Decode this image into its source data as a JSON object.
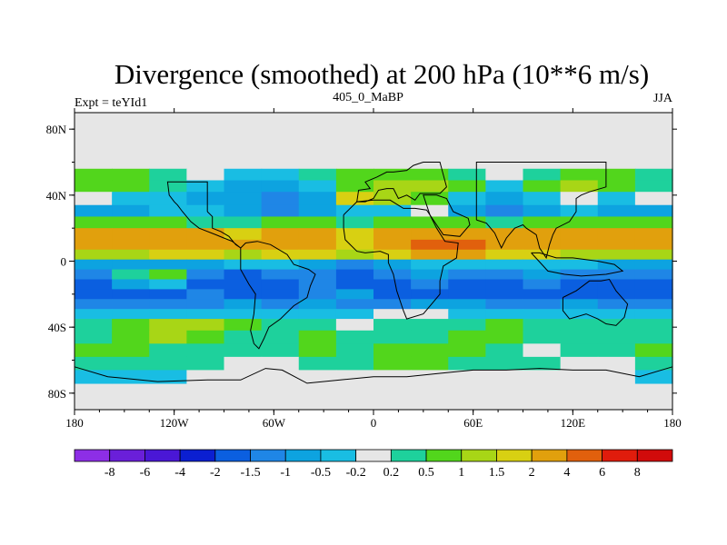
{
  "chart_data": {
    "type": "heatmap",
    "title": "Divergence (smoothed) at 200 hPa (10**6 m/s)",
    "subtitle": "405_0_MaBP",
    "left_label": "Expt = teYId1",
    "right_label": "JJA",
    "x_ticks": [
      "180",
      "120W",
      "60W",
      "0",
      "60E",
      "120E",
      "180"
    ],
    "y_ticks": [
      "80N",
      "40N",
      "0",
      "40S",
      "80S"
    ],
    "x_range_deg": [
      -180,
      180
    ],
    "y_range_deg": [
      -90,
      90
    ],
    "colorbar_labels": [
      "-8",
      "-6",
      "-4",
      "-2",
      "-1.5",
      "-1",
      "-0.5",
      "-0.2",
      "0.2",
      "0.5",
      "1",
      "1.5",
      "2",
      "4",
      "6",
      "8"
    ],
    "colorbar_colors": [
      "#8d2ee6",
      "#6a1fd9",
      "#4a17d6",
      "#0b1fd1",
      "#0b5fe0",
      "#1f86e6",
      "#0da3e0",
      "#19bde3",
      "#e6e6e6",
      "#1ed19c",
      "#52d61c",
      "#a8d616",
      "#d8d012",
      "#e1a00d",
      "#e1600d",
      "#e01c0c",
      "#d10b0b"
    ],
    "bands": [
      {
        "lat": 52,
        "values": [
          0.5,
          0.5,
          0.2,
          -0.2,
          -0.5,
          -0.5,
          0.2,
          0.5,
          0.5,
          0.5,
          0.2,
          -0.2,
          0.2,
          0.5,
          0.5,
          0.2
        ]
      },
      {
        "lat": 46,
        "values": [
          0.5,
          0.5,
          0.2,
          -0.5,
          -1,
          -1,
          -0.5,
          0.5,
          1,
          1,
          0.5,
          -0.5,
          0.5,
          1,
          0.5,
          0.2
        ]
      },
      {
        "lat": 38,
        "values": [
          -0.2,
          -0.5,
          -0.5,
          -1,
          -1,
          -1.5,
          -1,
          1.5,
          1,
          0.5,
          -0.5,
          -1,
          -0.5,
          -0.2,
          -0.5,
          -0.2
        ]
      },
      {
        "lat": 30,
        "values": [
          -1,
          -1,
          -0.5,
          -0.5,
          -1,
          -1.5,
          -1,
          -0.5,
          -0.5,
          -0.2,
          -1,
          -1.5,
          -1,
          -0.5,
          -1,
          -1
        ]
      },
      {
        "lat": 24,
        "values": [
          0.5,
          0.5,
          0.5,
          0.2,
          0.2,
          0.5,
          0.5,
          0.2,
          0.5,
          0.5,
          0.5,
          0.2,
          0.5,
          0.5,
          0.5,
          0.5
        ]
      },
      {
        "lat": 16,
        "values": [
          2,
          2,
          2,
          2,
          1.5,
          2,
          2,
          1.5,
          2,
          2,
          2,
          2,
          2,
          2,
          2,
          2
        ]
      },
      {
        "lat": 10,
        "values": [
          2,
          2,
          2,
          2,
          2,
          2,
          2,
          1.5,
          2,
          4,
          4,
          2,
          2,
          2,
          2,
          2
        ]
      },
      {
        "lat": 4,
        "values": [
          1,
          1,
          1.5,
          1.5,
          1,
          1.5,
          1.5,
          1,
          1.5,
          2,
          2,
          1.5,
          1.5,
          1,
          1,
          1
        ]
      },
      {
        "lat": -2,
        "values": [
          -1,
          -1,
          -1,
          -1,
          -0.5,
          -0.5,
          -1,
          -1.5,
          -1,
          -0.5,
          -0.5,
          -0.5,
          -0.5,
          -0.5,
          -1,
          -1
        ]
      },
      {
        "lat": -8,
        "values": [
          -1.5,
          0.2,
          0.5,
          -1.5,
          -2,
          -1.5,
          -1.5,
          -2,
          -1.5,
          -1,
          -1.5,
          -1.5,
          -1,
          -1.5,
          -1.5,
          -1.5
        ]
      },
      {
        "lat": -14,
        "values": [
          -2,
          -1,
          -0.5,
          -2,
          -2,
          -2,
          -1.5,
          -2,
          -2,
          -1.5,
          -2,
          -2,
          -1.5,
          -2,
          -2,
          -2
        ]
      },
      {
        "lat": -20,
        "values": [
          -2,
          -2,
          -2,
          -1.5,
          -2,
          -2,
          -1.5,
          -1,
          -2,
          -2,
          -2,
          -2,
          -2,
          -2,
          -2,
          -2
        ]
      },
      {
        "lat": -26,
        "values": [
          -1.5,
          -1.5,
          -1.5,
          -1.5,
          -1,
          -1.5,
          -1,
          -1.5,
          -1.5,
          -1,
          -1,
          -1.5,
          -1.5,
          -1,
          -1.5,
          -1.5
        ]
      },
      {
        "lat": -32,
        "values": [
          -0.5,
          -0.5,
          -0.5,
          -0.5,
          -0.5,
          -0.5,
          -0.5,
          -0.5,
          -0.2,
          -0.2,
          -0.5,
          -0.5,
          -0.5,
          -0.5,
          -0.5,
          -0.5
        ]
      },
      {
        "lat": -38,
        "values": [
          0.2,
          0.5,
          1,
          1,
          0.5,
          0.2,
          0.2,
          -0.2,
          0.2,
          0.2,
          0.2,
          0.5,
          0.2,
          0.2,
          0.2,
          0.2
        ]
      },
      {
        "lat": -46,
        "values": [
          0.2,
          0.5,
          1,
          0.5,
          0.2,
          0.2,
          0.5,
          0.2,
          0.2,
          0.2,
          0.5,
          0.5,
          0.2,
          0.2,
          0.2,
          0.2
        ]
      },
      {
        "lat": -54,
        "values": [
          0.5,
          0.5,
          0.2,
          0.2,
          0.2,
          0.2,
          0.5,
          0.2,
          0.5,
          0.5,
          0.5,
          0.2,
          -0.2,
          0.2,
          0.2,
          0.5
        ]
      },
      {
        "lat": -62,
        "values": [
          0.2,
          0.2,
          0.2,
          0.2,
          -0.2,
          -0.2,
          0.2,
          0.2,
          0.5,
          0.5,
          0.2,
          0.2,
          0.2,
          -0.2,
          -0.2,
          0.2
        ]
      },
      {
        "lat": -70,
        "values": [
          -0.5,
          -0.5,
          -0.5,
          -0.2,
          -0.2,
          -0.2,
          -0.2,
          -0.2,
          -0.2,
          -0.2,
          -0.2,
          -0.2,
          -0.2,
          -0.2,
          -0.2,
          -0.5
        ]
      }
    ]
  }
}
